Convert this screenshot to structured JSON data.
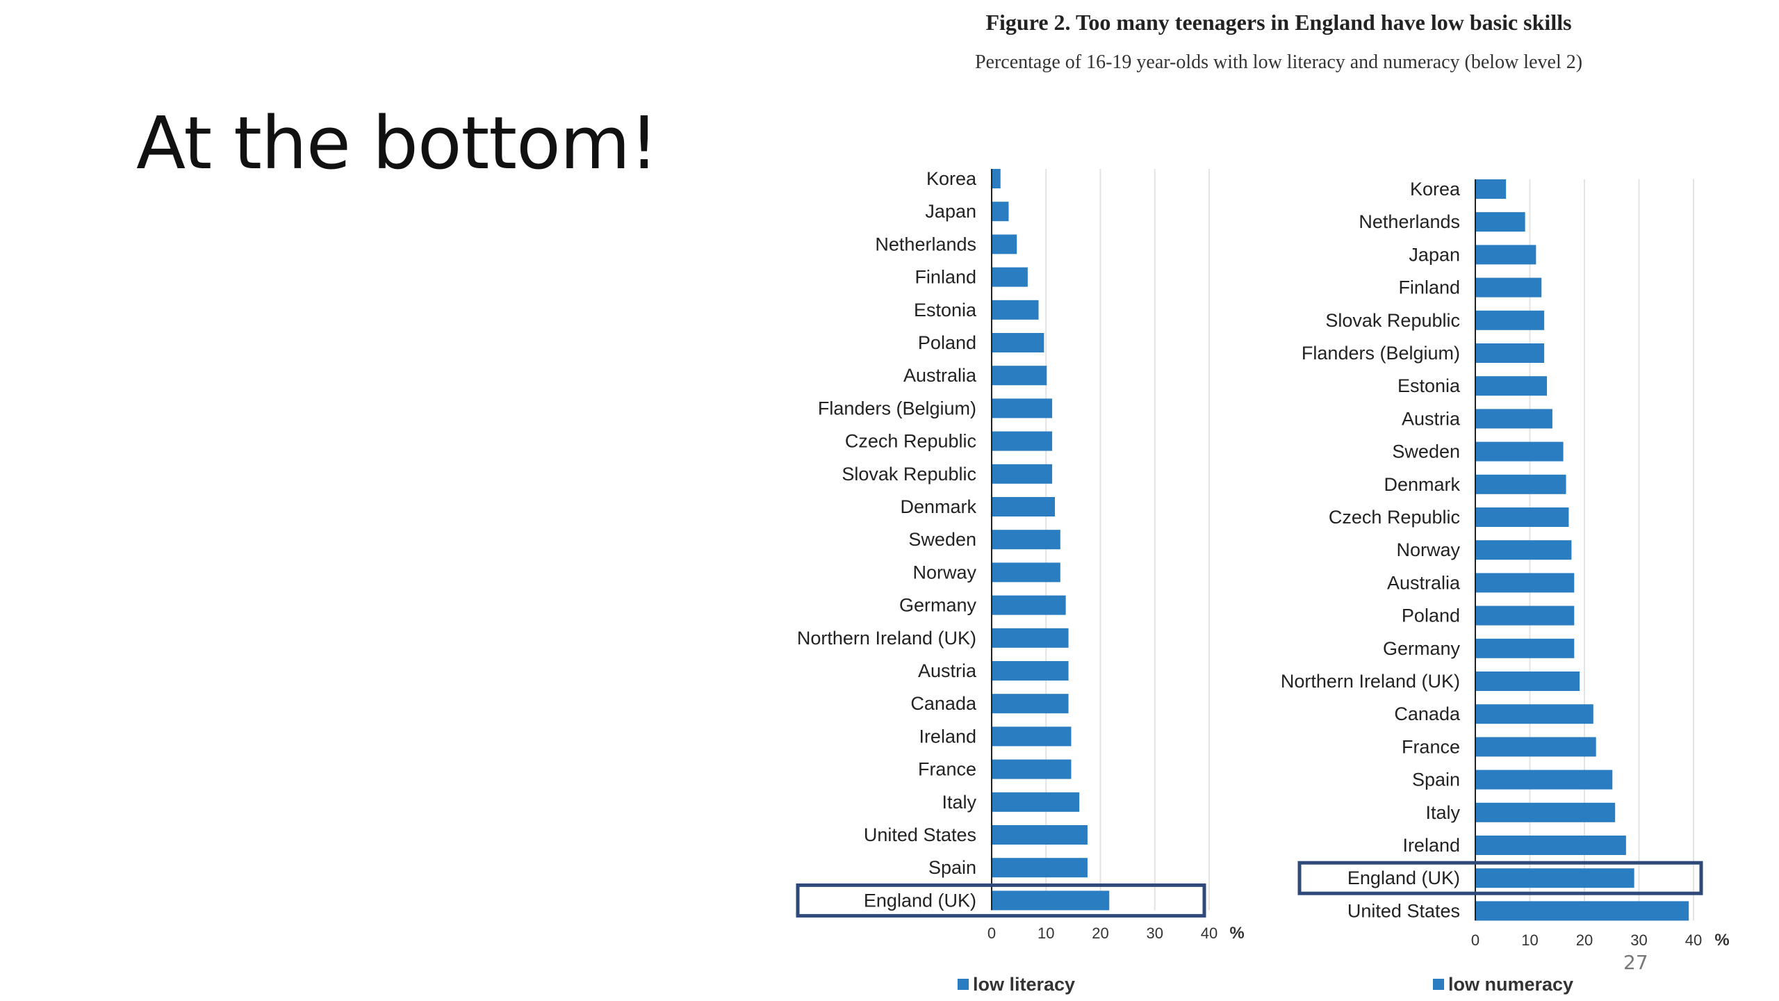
{
  "slide": {
    "title": "At the bottom!",
    "page_number": "27"
  },
  "figure": {
    "title": "Figure 2. Too many teenagers in England have low basic skills",
    "subtitle": "Percentage of 16-19 year-olds with low literacy and numeracy (below level 2)"
  },
  "colors": {
    "bar": "#2a7dc0",
    "highlight_box": "#2f4a7a",
    "grid": "#e3e3e3"
  },
  "chart_data": [
    {
      "type": "bar",
      "orientation": "horizontal",
      "categories": [
        "Korea",
        "Japan",
        "Netherlands",
        "Finland",
        "Estonia",
        "Poland",
        "Australia",
        "Flanders (Belgium)",
        "Czech Republic",
        "Slovak Republic",
        "Denmark",
        "Sweden",
        "Norway",
        "Germany",
        "Northern Ireland (UK)",
        "Austria",
        "Canada",
        "Ireland",
        "France",
        "Italy",
        "United States",
        "Spain",
        "England (UK)"
      ],
      "values": [
        1.5,
        3,
        4.5,
        6.5,
        8.5,
        9.5,
        10,
        11,
        11,
        11,
        11.5,
        12.5,
        12.5,
        13.5,
        14,
        14,
        14,
        14.5,
        14.5,
        16,
        17.5,
        17.5,
        21.5
      ],
      "highlight": "England (UK)",
      "x_ticks": [
        "0",
        "10",
        "20",
        "30",
        "40"
      ],
      "xlim": [
        0,
        40
      ],
      "unit": "%",
      "legend": "low literacy",
      "legend_position": "bottom",
      "grid": true
    },
    {
      "type": "bar",
      "orientation": "horizontal",
      "categories": [
        "Korea",
        "Netherlands",
        "Japan",
        "Finland",
        "Slovak Republic",
        "Flanders (Belgium)",
        "Estonia",
        "Austria",
        "Sweden",
        "Denmark",
        "Czech Republic",
        "Norway",
        "Australia",
        "Poland",
        "Germany",
        "Northern Ireland (UK)",
        "Canada",
        "France",
        "Spain",
        "Italy",
        "Ireland",
        "England (UK)",
        "United States"
      ],
      "values": [
        5.5,
        9,
        11,
        12,
        12.5,
        12.5,
        13,
        14,
        16,
        16.5,
        17,
        17.5,
        18,
        18,
        18,
        19,
        21.5,
        22,
        25,
        25.5,
        27.5,
        29,
        39
      ],
      "highlight": "England (UK)",
      "x_ticks": [
        "0",
        "10",
        "20",
        "30",
        "40"
      ],
      "xlim": [
        0,
        40
      ],
      "unit": "%",
      "legend": "low numeracy",
      "legend_position": "bottom",
      "grid": true
    }
  ]
}
